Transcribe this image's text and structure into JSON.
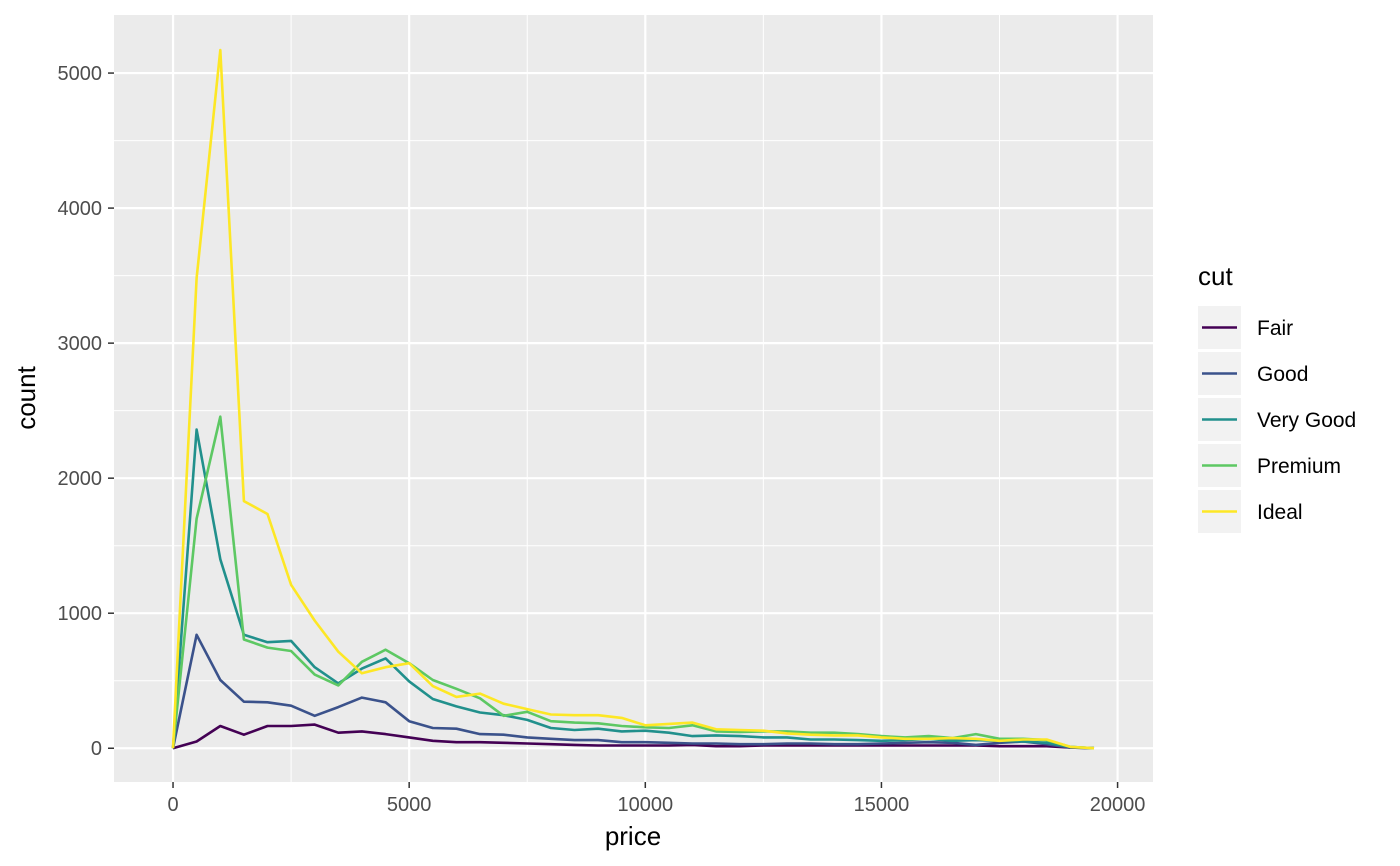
{
  "chart_data": {
    "type": "line",
    "xlabel": "price",
    "ylabel": "count",
    "xlim": [
      -1250,
      20750
    ],
    "ylim": [
      -250,
      5430
    ],
    "xticks": [
      0,
      5000,
      10000,
      15000,
      20000
    ],
    "yticks": [
      0,
      1000,
      2000,
      3000,
      4000,
      5000
    ],
    "grid": true,
    "legend": {
      "title": "cut",
      "position": "right"
    },
    "x": [
      0,
      500,
      1000,
      1500,
      2000,
      2500,
      3000,
      3500,
      4000,
      4500,
      5000,
      5500,
      6000,
      6500,
      7000,
      7500,
      8000,
      8500,
      9000,
      9500,
      10000,
      10500,
      11000,
      11500,
      12000,
      12500,
      13000,
      13500,
      14000,
      14500,
      15000,
      15500,
      16000,
      16500,
      17000,
      17500,
      18000,
      18500,
      19000,
      19500
    ],
    "series": [
      {
        "name": "Fair",
        "color": "#440154",
        "values": [
          0,
          50,
          165,
          100,
          165,
          165,
          175,
          115,
          125,
          105,
          80,
          55,
          45,
          45,
          40,
          35,
          30,
          25,
          20,
          20,
          20,
          20,
          25,
          15,
          15,
          20,
          20,
          20,
          20,
          20,
          20,
          20,
          20,
          20,
          20,
          15,
          15,
          15,
          5,
          0
        ]
      },
      {
        "name": "Good",
        "color": "#3B528B",
        "values": [
          0,
          840,
          505,
          345,
          340,
          315,
          240,
          305,
          375,
          340,
          200,
          150,
          145,
          105,
          100,
          80,
          70,
          60,
          60,
          45,
          45,
          40,
          35,
          35,
          30,
          30,
          35,
          35,
          30,
          30,
          35,
          40,
          45,
          40,
          25,
          40,
          50,
          30,
          5,
          0
        ]
      },
      {
        "name": "Very Good",
        "color": "#21908C",
        "values": [
          0,
          2360,
          1400,
          840,
          785,
          795,
          600,
          480,
          590,
          665,
          495,
          365,
          310,
          265,
          245,
          210,
          150,
          135,
          145,
          125,
          130,
          115,
          90,
          95,
          90,
          80,
          80,
          65,
          65,
          60,
          55,
          60,
          70,
          55,
          60,
          55,
          50,
          40,
          10,
          0
        ]
      },
      {
        "name": "Premium",
        "color": "#5DC863",
        "values": [
          0,
          1700,
          2455,
          805,
          745,
          720,
          545,
          465,
          640,
          730,
          630,
          505,
          440,
          370,
          240,
          270,
          200,
          190,
          185,
          165,
          155,
          150,
          170,
          125,
          120,
          125,
          125,
          115,
          115,
          105,
          90,
          80,
          90,
          75,
          105,
          70,
          70,
          60,
          10,
          0
        ]
      },
      {
        "name": "Ideal",
        "color": "#FDE725",
        "values": [
          0,
          3480,
          5170,
          1830,
          1735,
          1210,
          945,
          715,
          555,
          600,
          630,
          460,
          380,
          405,
          330,
          290,
          250,
          245,
          245,
          225,
          170,
          180,
          190,
          140,
          135,
          130,
          110,
          100,
          95,
          95,
          80,
          70,
          70,
          75,
          70,
          55,
          65,
          65,
          10,
          0
        ]
      }
    ]
  }
}
